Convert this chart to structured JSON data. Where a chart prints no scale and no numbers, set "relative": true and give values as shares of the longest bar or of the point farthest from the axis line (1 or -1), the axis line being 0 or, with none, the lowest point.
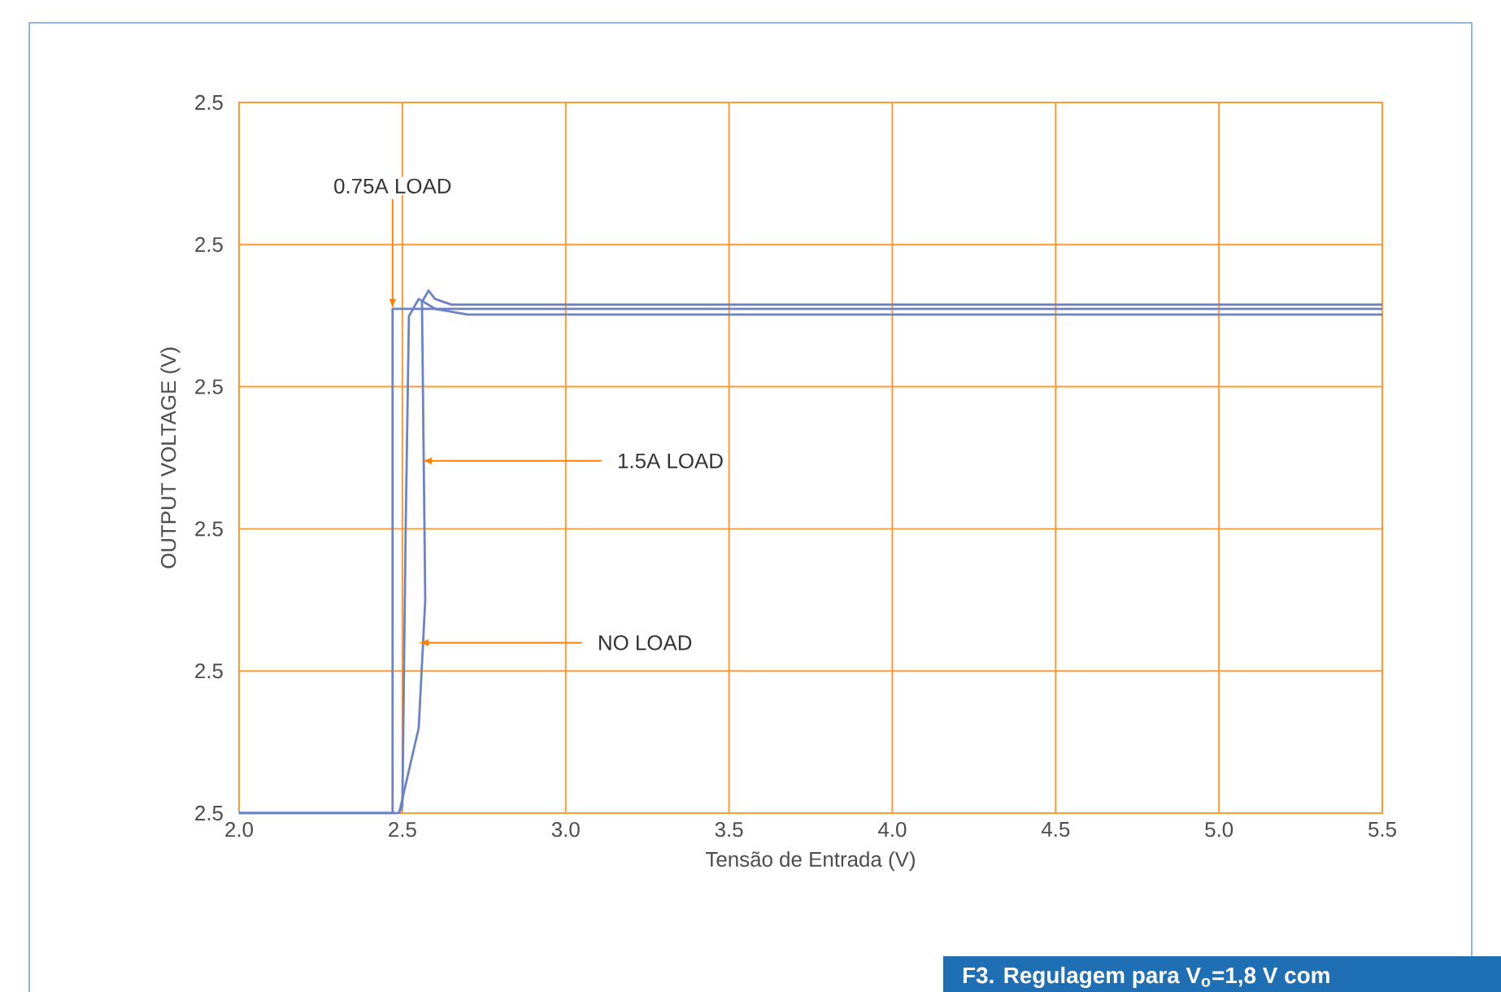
{
  "chart_data": {
    "type": "line",
    "xlabel": "Tensão de Entrada (V)",
    "ylabel": "OUTPUT VOLTAGE (V)",
    "xlim": [
      2.0,
      5.5
    ],
    "xticks": [
      {
        "value": 2.0,
        "label": "2.0"
      },
      {
        "value": 2.5,
        "label": "2.5"
      },
      {
        "value": 3.0,
        "label": "3.0"
      },
      {
        "value": 3.5,
        "label": "3.5"
      },
      {
        "value": 4.0,
        "label": "4.0"
      },
      {
        "value": 4.5,
        "label": "4.5"
      },
      {
        "value": 5.0,
        "label": "5.0"
      },
      {
        "value": 5.5,
        "label": "5.5"
      }
    ],
    "relative": true,
    "grid": true,
    "marker": "none",
    "line_style": "solid",
    "series": [
      {
        "color": "#6b82c4",
        "x": [
          2.0,
          2.47,
          2.47,
          2.52,
          5.5
        ],
        "values": [
          0,
          0,
          0.965,
          0.965,
          0.965
        ]
      },
      {
        "color": "#6b82c4",
        "x": [
          2.0,
          2.49,
          2.55,
          2.57,
          2.56,
          2.58,
          2.6,
          2.65,
          5.5
        ],
        "values": [
          0,
          0,
          0.163,
          0.408,
          0.978,
          1,
          0.984,
          0.973,
          0.973
        ]
      },
      {
        "color": "#6b82c4",
        "x": [
          2.49,
          2.5,
          2.51,
          2.52,
          2.55,
          2.6,
          2.7,
          5.5
        ],
        "values": [
          0,
          0.014,
          0.543,
          0.951,
          0.984,
          0.965,
          0.954,
          0.954
        ]
      }
    ],
    "annotations": [
      "2.5",
      "2.5",
      "2.5",
      "2.5",
      "2.5",
      "2.5",
      {
        "text": "0.75A LOAD",
        "x": 2.47,
        "y": 0.965
      },
      {
        "text": "1.5A LOAD",
        "x": 2.56,
        "y": 0.674
      },
      {
        "text": "NO LOAD",
        "x": 2.55,
        "y": 0.326
      },
      "F3. Regulagem para V$_{o}$=1,8 V com"
    ]
  }
}
